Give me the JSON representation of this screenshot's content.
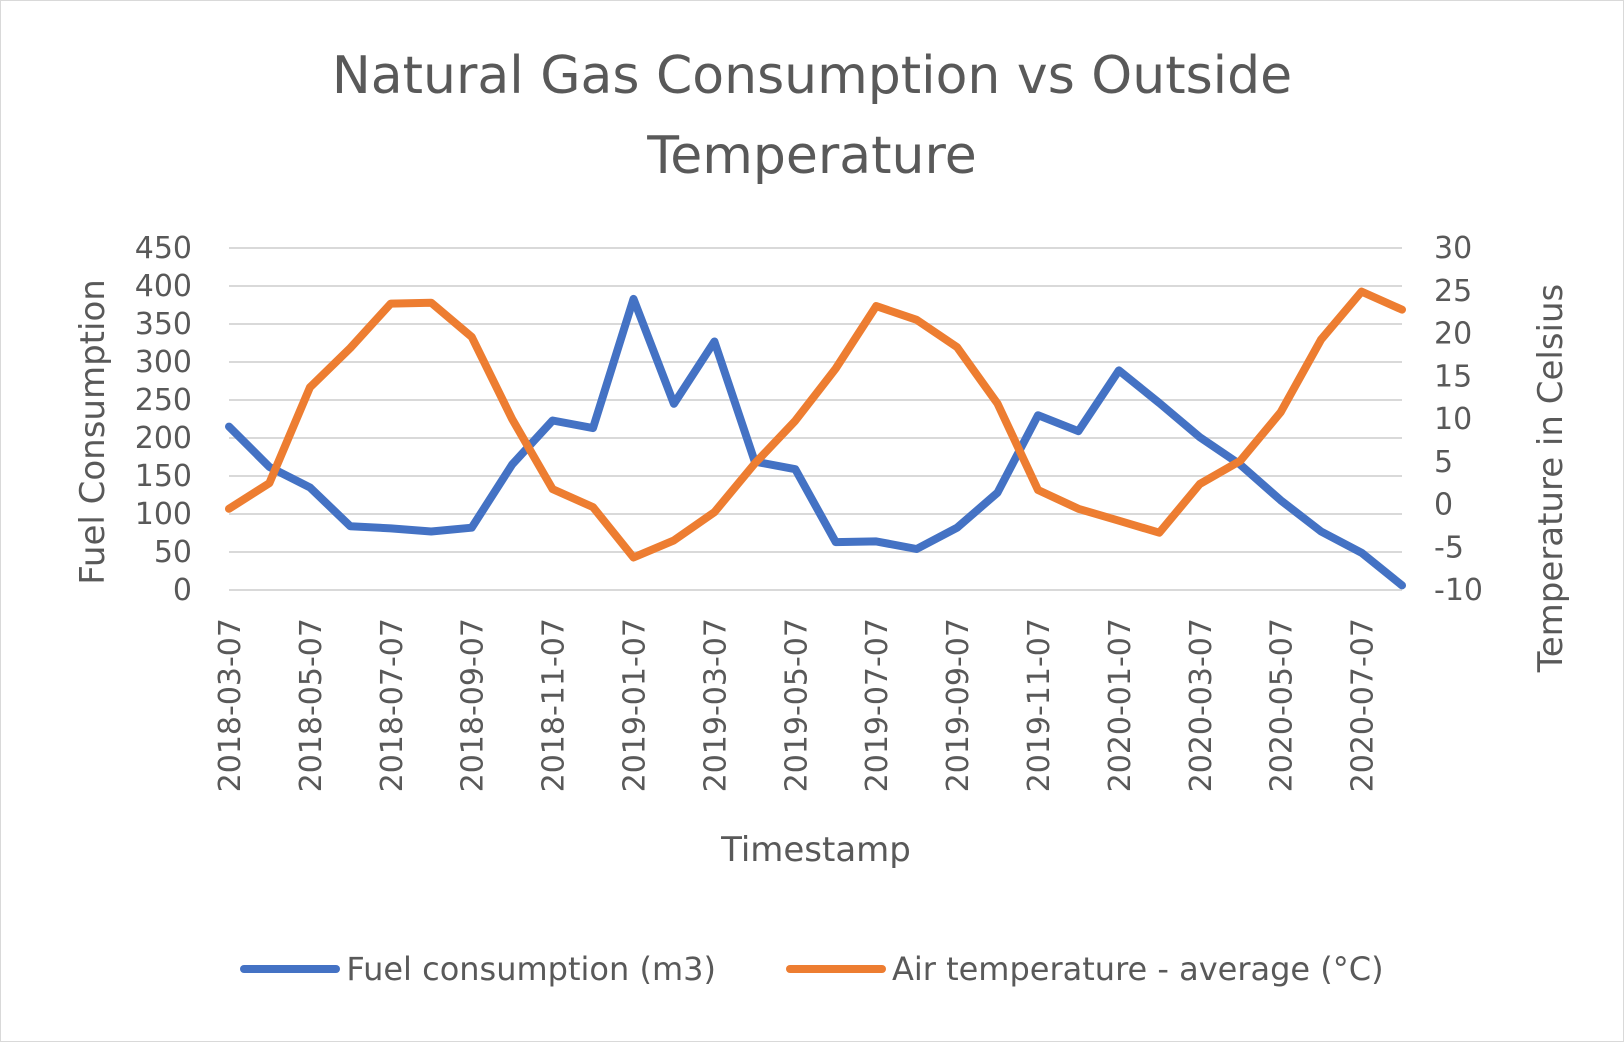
{
  "chart_data": {
    "type": "line",
    "title": [
      "Natural Gas Consumption vs Outside",
      "Temperature"
    ],
    "xlabel": "Timestamp",
    "ylabel": "Fuel Consumption",
    "y2label": "Temperature in Celsius",
    "ylim": [
      0,
      450
    ],
    "yticks": [
      "0",
      "50",
      "100",
      "150",
      "200",
      "250",
      "300",
      "350",
      "400",
      "450"
    ],
    "y2lim": [
      -10,
      30
    ],
    "y2ticks": [
      "-10",
      "-5",
      "0",
      "5",
      "10",
      "15",
      "20",
      "25",
      "30"
    ],
    "xticks": [
      "2018-03-07",
      "2018-05-07",
      "2018-07-07",
      "2018-09-07",
      "2018-11-07",
      "2019-01-07",
      "2019-03-07",
      "2019-05-07",
      "2019-07-07",
      "2019-09-07",
      "2019-11-07",
      "2020-01-07",
      "2020-03-07",
      "2020-05-07",
      "2020-07-07"
    ],
    "x": [
      "2018-03-07",
      "2018-04-07",
      "2018-05-07",
      "2018-06-07",
      "2018-07-07",
      "2018-08-07",
      "2018-09-07",
      "2018-10-07",
      "2018-11-07",
      "2018-12-07",
      "2019-01-07",
      "2019-02-07",
      "2019-03-07",
      "2019-04-07",
      "2019-05-07",
      "2019-06-07",
      "2019-07-07",
      "2019-08-07",
      "2019-09-07",
      "2019-10-07",
      "2019-11-07",
      "2019-12-07",
      "2020-01-07",
      "2020-02-07",
      "2020-03-07",
      "2020-04-07",
      "2020-05-07",
      "2020-06-07",
      "2020-07-07",
      "2020-08-07"
    ],
    "grid": true,
    "legend_position": "bottom",
    "series": [
      {
        "name": "Fuel consumption (m3)",
        "axis": "left",
        "color": "#4472C4",
        "values": [
          215,
          162,
          135,
          84,
          81,
          77,
          82,
          165,
          223,
          213,
          383,
          245,
          327,
          169,
          159,
          63,
          64,
          54,
          82,
          128,
          230,
          209,
          289,
          246,
          201,
          165,
          118,
          77,
          49,
          6
        ]
      },
      {
        "name": "Air temperature - average (°C)",
        "axis": "right",
        "color": "#ED7D31",
        "values": [
          -0.5,
          2.5,
          13.7,
          18.3,
          23.5,
          23.6,
          19.6,
          10.0,
          1.8,
          -0.3,
          -6.2,
          -4.2,
          -0.9,
          4.8,
          9.8,
          15.9,
          23.2,
          21.6,
          18.4,
          11.8,
          1.7,
          -0.5,
          -1.9,
          -3.3,
          2.4,
          5.1,
          10.8,
          19.3,
          24.9,
          22.8
        ]
      }
    ]
  }
}
